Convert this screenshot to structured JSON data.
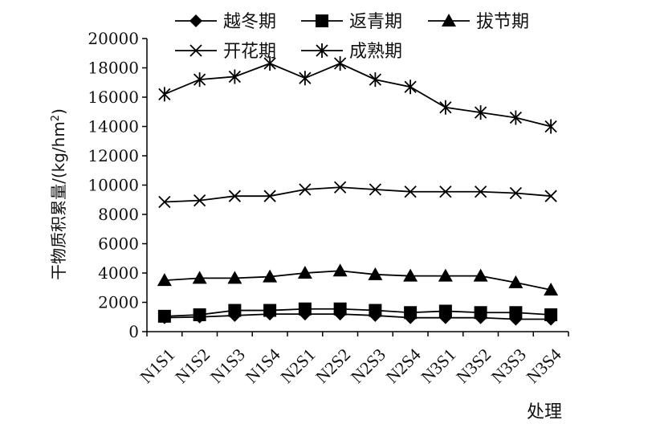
{
  "chart_data": {
    "type": "line",
    "title": "",
    "xlabel": "处理",
    "ylabel": "干物质积累量/(kg/hm",
    "ylabel_sup": "2",
    "ylabel_end": ")",
    "categories": [
      "N1S1",
      "N1S2",
      "N1S3",
      "N1S4",
      "N2S1",
      "N2S2",
      "N2S3",
      "N2S4",
      "N3S1",
      "N3S2",
      "N3S3",
      "N3S4"
    ],
    "ylim": [
      0,
      20000
    ],
    "yticks": [
      0,
      2000,
      4000,
      6000,
      8000,
      10000,
      12000,
      14000,
      16000,
      18000,
      20000
    ],
    "ytick_labels": [
      "0",
      "2000",
      "4000",
      "6000",
      "8000",
      "10000",
      "12000",
      "14000",
      "16000",
      "18000",
      "20000"
    ],
    "grid": false,
    "legend_position": "top",
    "series": [
      {
        "name": "越冬期",
        "marker": "diamond",
        "values": [
          950,
          1000,
          1100,
          1200,
          1200,
          1200,
          1100,
          950,
          950,
          950,
          850,
          850
        ]
      },
      {
        "name": "返青期",
        "marker": "square",
        "values": [
          1050,
          1150,
          1450,
          1450,
          1550,
          1550,
          1450,
          1300,
          1400,
          1300,
          1300,
          1150
        ]
      },
      {
        "name": "拔节期",
        "marker": "triangle",
        "values": [
          3500,
          3650,
          3650,
          3750,
          4000,
          4150,
          3900,
          3800,
          3800,
          3800,
          3350,
          2850
        ]
      },
      {
        "name": "开花期",
        "marker": "x",
        "values": [
          8850,
          8950,
          9250,
          9250,
          9700,
          9850,
          9700,
          9550,
          9550,
          9550,
          9450,
          9250
        ]
      },
      {
        "name": "成熟期",
        "marker": "star",
        "values": [
          16200,
          17200,
          17400,
          18300,
          17300,
          18300,
          17200,
          16700,
          15300,
          14950,
          14600,
          14000
        ]
      }
    ]
  }
}
